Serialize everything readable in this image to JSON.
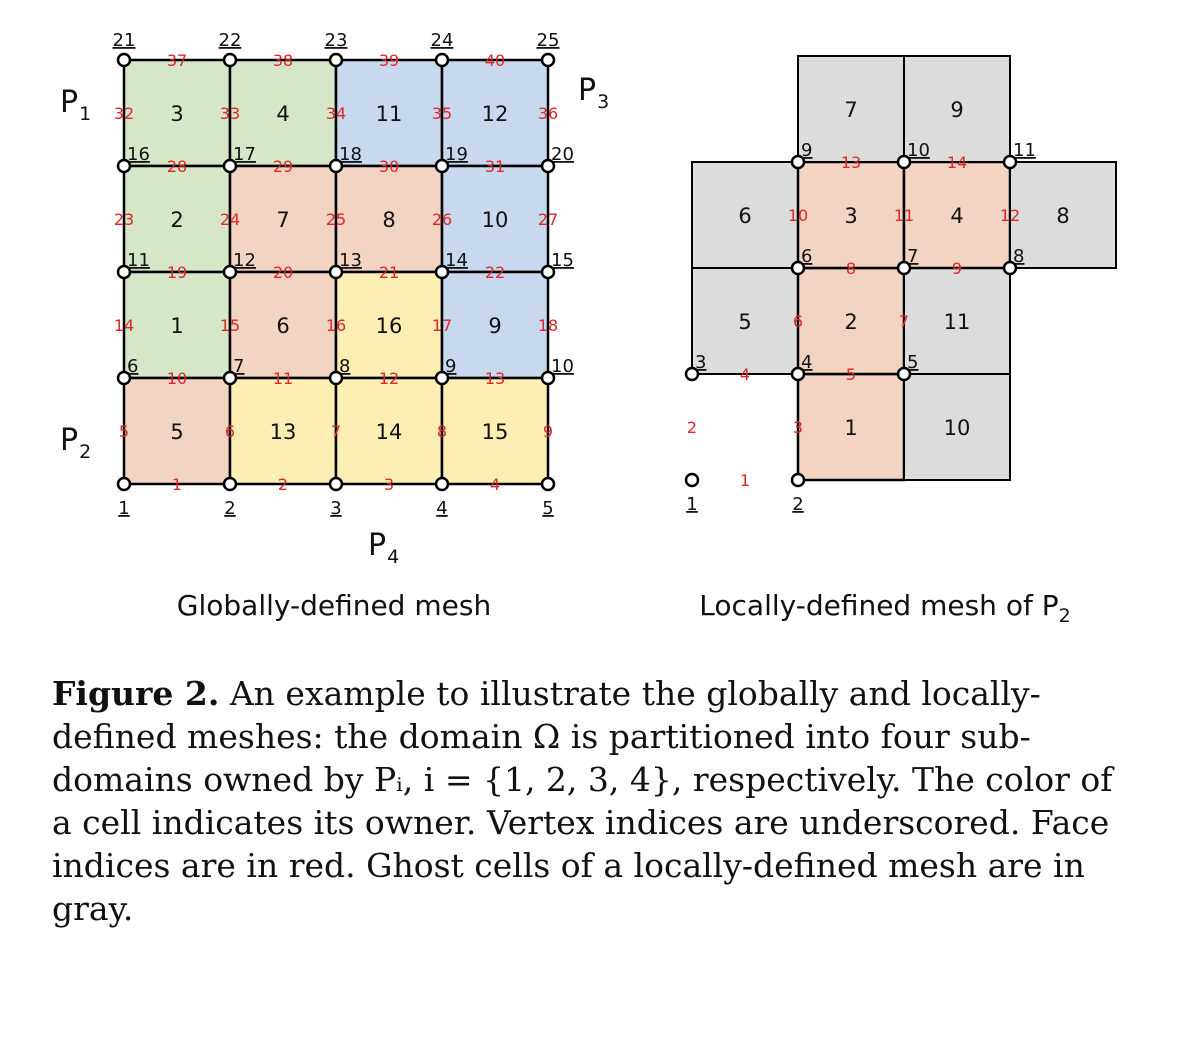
{
  "colors": {
    "P1": "#d6e7c8",
    "P2": "#f3d4c2",
    "P3": "#c8d9ef",
    "P4": "#fdeeb3",
    "ghost": "#dcdcdc",
    "face_index": "#e0262a"
  },
  "process_labels": {
    "P1": {
      "main": "P",
      "sub": "1"
    },
    "P2": {
      "main": "P",
      "sub": "2"
    },
    "P3": {
      "main": "P",
      "sub": "3"
    },
    "P4": {
      "main": "P",
      "sub": "4"
    }
  },
  "global_mesh": {
    "title": "Globally-defined mesh",
    "cells": [
      {
        "row": 0,
        "col": 0,
        "owner": "P1",
        "label": "3"
      },
      {
        "row": 0,
        "col": 1,
        "owner": "P1",
        "label": "4"
      },
      {
        "row": 0,
        "col": 2,
        "owner": "P3",
        "label": "11"
      },
      {
        "row": 0,
        "col": 3,
        "owner": "P3",
        "label": "12"
      },
      {
        "row": 1,
        "col": 0,
        "owner": "P1",
        "label": "2"
      },
      {
        "row": 1,
        "col": 1,
        "owner": "P2",
        "label": "7"
      },
      {
        "row": 1,
        "col": 2,
        "owner": "P2",
        "label": "8"
      },
      {
        "row": 1,
        "col": 3,
        "owner": "P3",
        "label": "10"
      },
      {
        "row": 2,
        "col": 0,
        "owner": "P1",
        "label": "1"
      },
      {
        "row": 2,
        "col": 1,
        "owner": "P2",
        "label": "6"
      },
      {
        "row": 2,
        "col": 2,
        "owner": "P4",
        "label": "16"
      },
      {
        "row": 2,
        "col": 3,
        "owner": "P3",
        "label": "9"
      },
      {
        "row": 3,
        "col": 0,
        "owner": "P2",
        "label": "5"
      },
      {
        "row": 3,
        "col": 1,
        "owner": "P4",
        "label": "13"
      },
      {
        "row": 3,
        "col": 2,
        "owner": "P4",
        "label": "14"
      },
      {
        "row": 3,
        "col": 3,
        "owner": "P4",
        "label": "15"
      }
    ],
    "vertex_rows": [
      [
        "21",
        "22",
        "23",
        "24",
        "25"
      ],
      [
        "16",
        "17",
        "18",
        "19",
        "20"
      ],
      [
        "11",
        "12",
        "13",
        "14",
        "15"
      ],
      [
        "6",
        "7",
        "8",
        "9",
        "10"
      ],
      [
        "1",
        "2",
        "3",
        "4",
        "5"
      ]
    ],
    "horizontal_face_rows": [
      [
        "37",
        "38",
        "39",
        "40"
      ],
      [
        "28",
        "29",
        "30",
        "31"
      ],
      [
        "19",
        "20",
        "21",
        "22"
      ],
      [
        "10",
        "11",
        "12",
        "13"
      ],
      [
        "1",
        "2",
        "3",
        "4"
      ]
    ],
    "vertical_face_rows": [
      [
        "32",
        "33",
        "34",
        "35",
        "36"
      ],
      [
        "23",
        "24",
        "25",
        "26",
        "27"
      ],
      [
        "14",
        "15",
        "16",
        "17",
        "18"
      ],
      [
        "5",
        "6",
        "7",
        "8",
        "9"
      ]
    ]
  },
  "local_mesh": {
    "title_prefix": "Locally-defined mesh of ",
    "cells": [
      {
        "col": 1,
        "row": 0,
        "ghost": false,
        "label": "1"
      },
      {
        "col": 2,
        "row": 0,
        "ghost": true,
        "label": "10"
      },
      {
        "col": 0,
        "row": 1,
        "ghost": true,
        "label": "5"
      },
      {
        "col": 1,
        "row": 1,
        "ghost": false,
        "label": "2"
      },
      {
        "col": 2,
        "row": 1,
        "ghost": true,
        "label": "11"
      },
      {
        "col": 0,
        "row": 2,
        "ghost": true,
        "label": "6"
      },
      {
        "col": 1,
        "row": 2,
        "ghost": false,
        "label": "3"
      },
      {
        "col": 2,
        "row": 2,
        "ghost": false,
        "label": "4"
      },
      {
        "col": 3,
        "row": 2,
        "ghost": true,
        "label": "8"
      },
      {
        "col": 1,
        "row": 3,
        "ghost": true,
        "label": "7"
      },
      {
        "col": 2,
        "row": 3,
        "ghost": true,
        "label": "9"
      }
    ],
    "vertices": [
      {
        "col": 0,
        "row": 0,
        "label": "1"
      },
      {
        "col": 1,
        "row": 0,
        "label": "2"
      },
      {
        "col": 0,
        "row": 1,
        "label": "3"
      },
      {
        "col": 1,
        "row": 1,
        "label": "4"
      },
      {
        "col": 2,
        "row": 1,
        "label": "5"
      },
      {
        "col": 1,
        "row": 2,
        "label": "6"
      },
      {
        "col": 2,
        "row": 2,
        "label": "7"
      },
      {
        "col": 3,
        "row": 2,
        "label": "8"
      },
      {
        "col": 1,
        "row": 3,
        "label": "9"
      },
      {
        "col": 2,
        "row": 3,
        "label": "10"
      },
      {
        "col": 3,
        "row": 3,
        "label": "11"
      }
    ],
    "horizontal_faces": [
      {
        "col": 0,
        "row": 0,
        "label": "1"
      },
      {
        "col": 0,
        "row": 1,
        "label": "4"
      },
      {
        "col": 1,
        "row": 1,
        "label": "5"
      },
      {
        "col": 1,
        "row": 2,
        "label": "8"
      },
      {
        "col": 2,
        "row": 2,
        "label": "9"
      },
      {
        "col": 1,
        "row": 3,
        "label": "13"
      },
      {
        "col": 2,
        "row": 3,
        "label": "14"
      }
    ],
    "vertical_faces": [
      {
        "col": 0,
        "row": 0,
        "label": "2"
      },
      {
        "col": 1,
        "row": 0,
        "label": "3"
      },
      {
        "col": 1,
        "row": 1,
        "label": "6"
      },
      {
        "col": 2,
        "row": 1,
        "label": "7"
      },
      {
        "col": 1,
        "row": 2,
        "label": "10"
      },
      {
        "col": 2,
        "row": 2,
        "label": "11"
      },
      {
        "col": 3,
        "row": 2,
        "label": "12"
      }
    ]
  },
  "caption": {
    "label": "Figure 2.",
    "text": " An example to illustrate the globally and locally-defined meshes: the domain Ω is partitioned into four sub-domains owned by Pᵢ, i = {1, 2, 3, 4}, respectively. The color of a cell indicates its owner. Vertex indices are underscored. Face indices are in red. Ghost cells of a locally-defined mesh are in gray."
  }
}
